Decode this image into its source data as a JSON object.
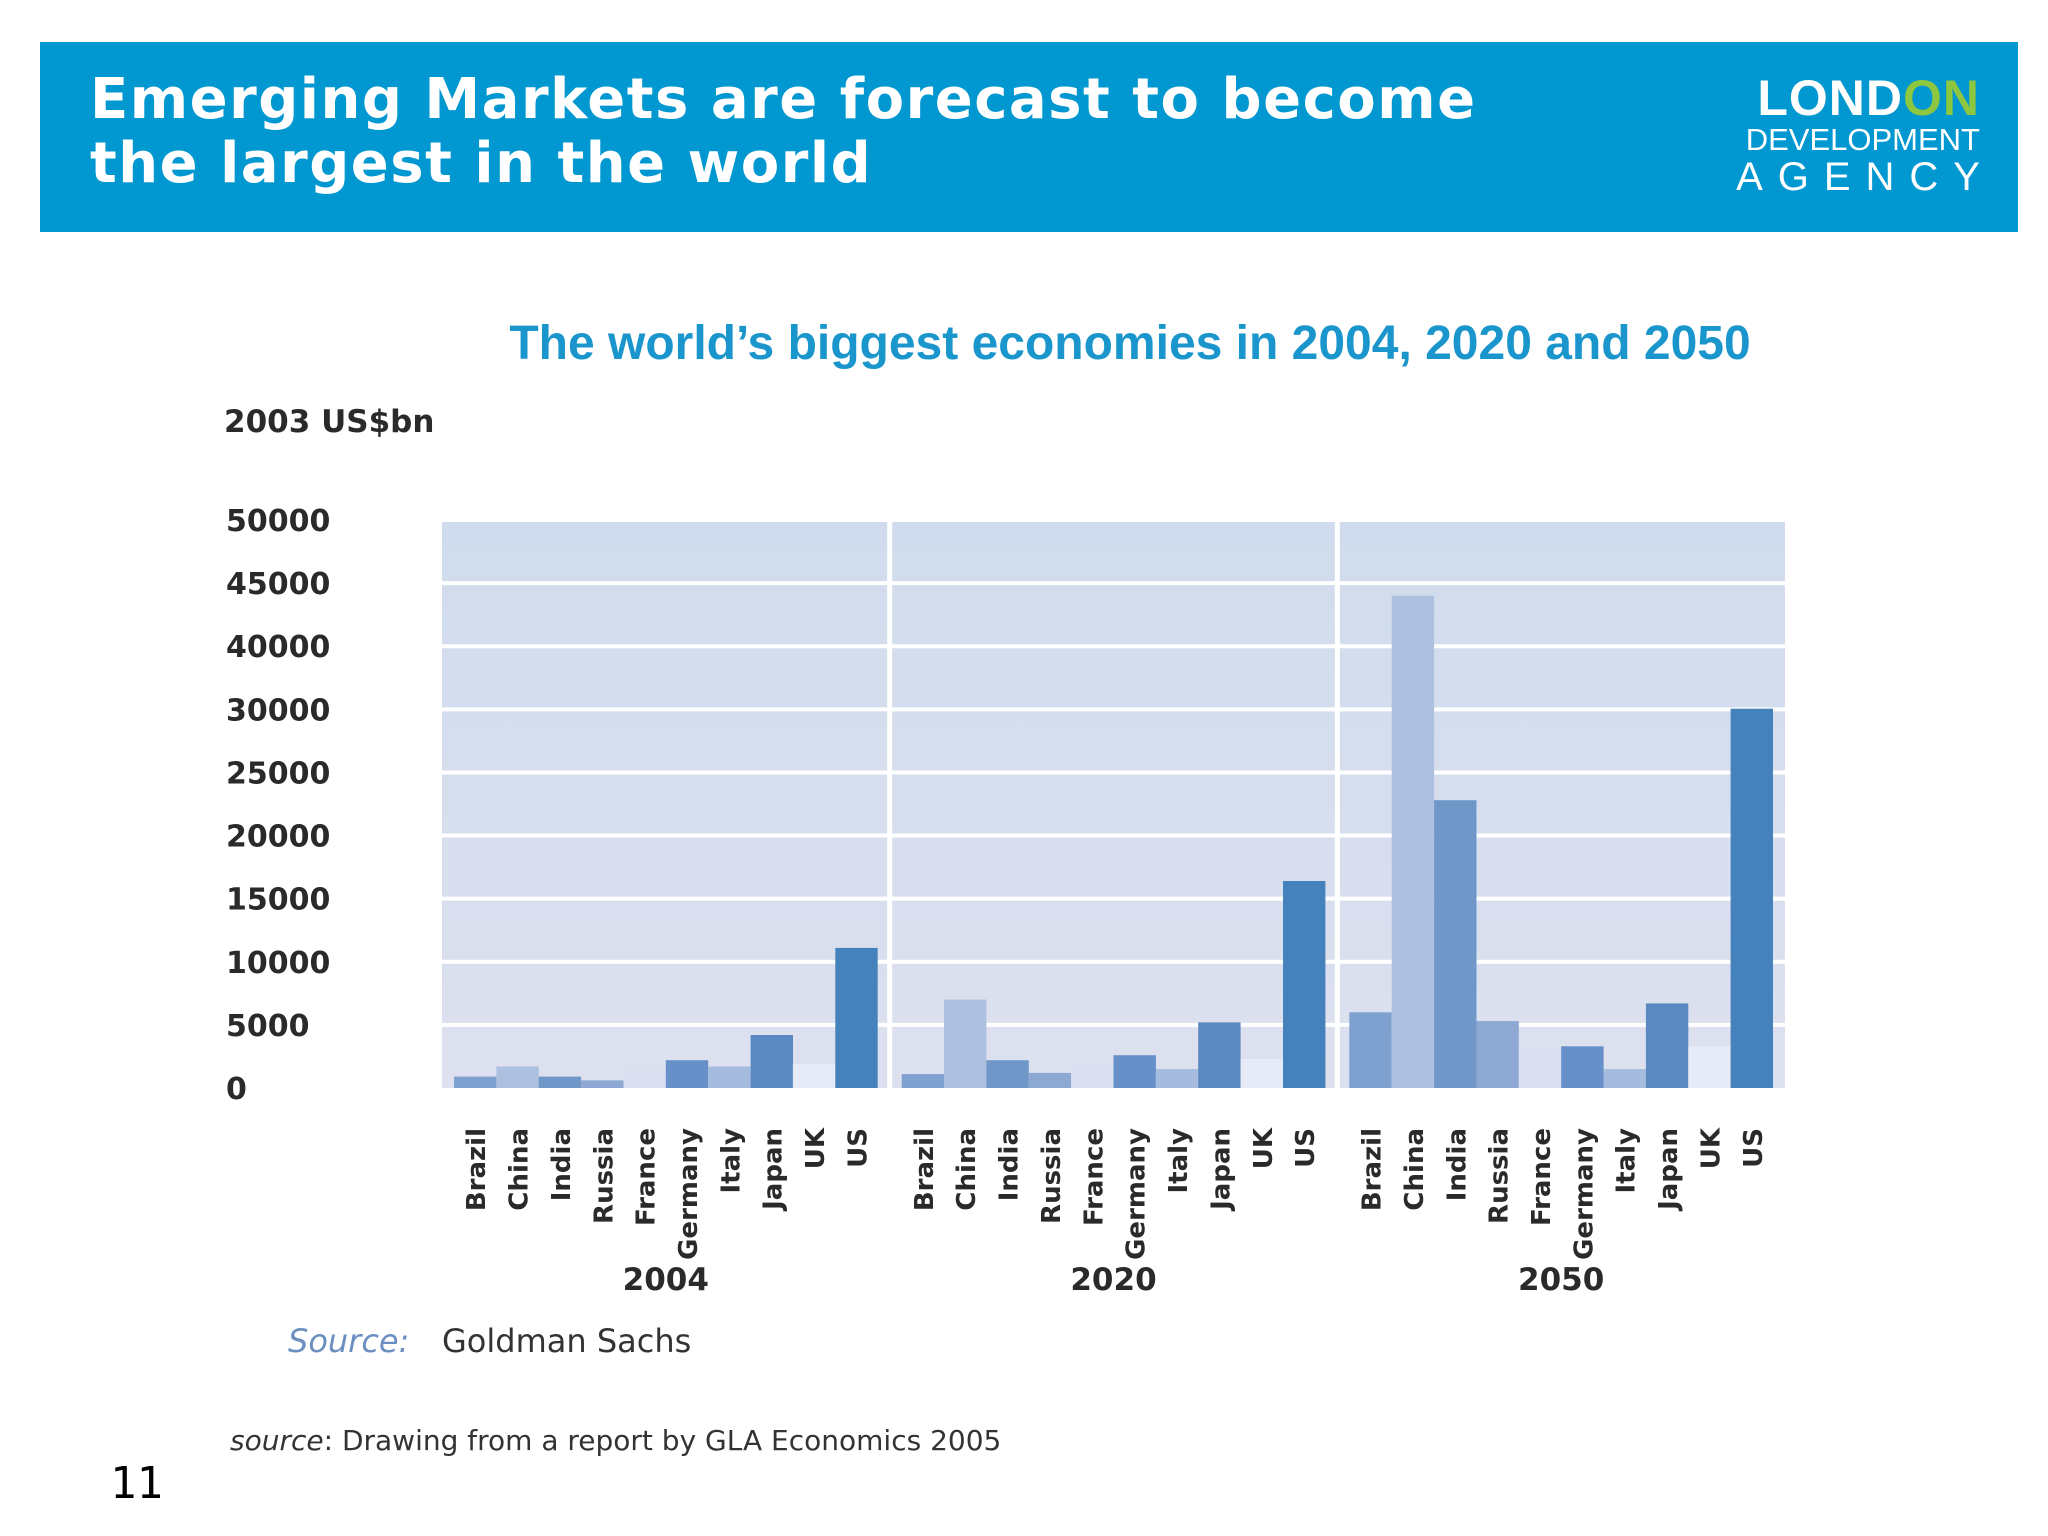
{
  "slide": {
    "title": "Emerging Markets are forecast to become the largest in the world",
    "logo": {
      "line1_a": "LOND",
      "line1_b": "ON",
      "line2": "DEVELOPMENT",
      "line3": "AGENCY"
    },
    "source_label": "Source:",
    "source_value": "Goldman Sachs",
    "footnote_italic": "source",
    "footnote_rest": ": Drawing from a report by GLA Economics 2005",
    "page_number": "11"
  },
  "colors": {
    "banner": "#0197d0",
    "logo_accent": "#8dc63f",
    "chart_title": "#1a96cd",
    "plot_bg_top": "#d0dced",
    "plot_bg_bottom": "#dde0ef",
    "bar_palette": [
      "#7ea1cf",
      "#aec0df",
      "#6f98c9",
      "#8ea8d4",
      "#d9dff0",
      "#6890c8",
      "#a6bcdf",
      "#5c88c2",
      "#e7ebf7",
      "#4582bb"
    ]
  },
  "chart_data": {
    "type": "bar",
    "title": "The world’s biggest economies in 2004, 2020 and 2050",
    "ylabel": "2003 US$bn",
    "ylim": [
      0,
      50000
    ],
    "yticks": [
      0,
      5000,
      10000,
      15000,
      20000,
      25000,
      30000,
      40000,
      45000,
      50000
    ],
    "grid": true,
    "categories": [
      "Brazil",
      "China",
      "India",
      "Russia",
      "France",
      "Germany",
      "Italy",
      "Japan",
      "UK",
      "US"
    ],
    "groups": [
      {
        "label": "2004",
        "values": [
          900,
          1700,
          900,
          600,
          1400,
          2200,
          1700,
          4200,
          1900,
          11100
        ]
      },
      {
        "label": "2020",
        "values": [
          1100,
          7000,
          2200,
          1200,
          2000,
          2600,
          1500,
          5200,
          2300,
          16400
        ]
      },
      {
        "label": "2050",
        "values": [
          6000,
          44000,
          22800,
          5300,
          3000,
          3300,
          1500,
          6700,
          3300,
          30100
        ]
      }
    ]
  }
}
